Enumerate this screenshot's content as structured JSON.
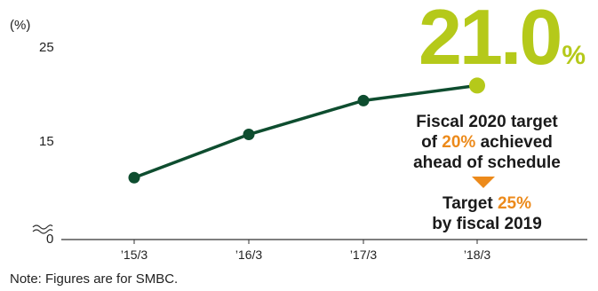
{
  "chart_data": {
    "type": "line",
    "unit_label": "(%)",
    "y_ticks": [
      0,
      15,
      25
    ],
    "ylim": [
      0,
      25
    ],
    "axis_break": true,
    "categories": [
      "’15/3",
      "’16/3",
      "’17/3",
      "’18/3"
    ],
    "values": [
      11.2,
      15.8,
      19.4,
      21.0
    ],
    "highlight": {
      "index": 3,
      "value": "21.0",
      "unit": "%"
    },
    "colors": {
      "line": "#0e4d2f",
      "highlight": "#b5c91a",
      "accent": "#ec8a1b"
    },
    "grid": false
  },
  "callouts": {
    "achieved": {
      "line1": "Fiscal 2020 target",
      "line2_prefix": "of ",
      "line2_highlight": "20%",
      "line2_suffix": " achieved",
      "line3": "ahead of schedule"
    },
    "target": {
      "line1_prefix": "Target ",
      "line1_highlight": "25%",
      "line2": "by fiscal 2019"
    }
  },
  "note": "Note: Figures are for SMBC."
}
